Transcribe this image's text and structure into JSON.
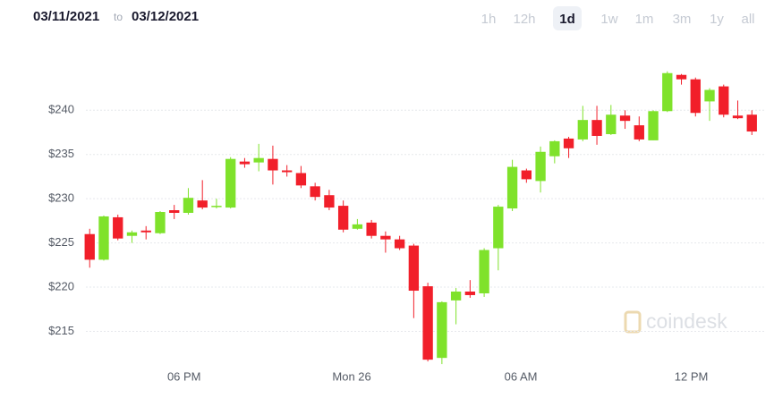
{
  "header": {
    "date_from": "03/11/2021",
    "separator": "to",
    "date_to": "03/12/2021",
    "ranges": [
      "1h",
      "12h",
      "1d",
      "1w",
      "1m",
      "3m",
      "1y",
      "all"
    ],
    "selected": "1d"
  },
  "watermark": "coindesk",
  "chart_data": {
    "type": "candlestick",
    "x": [
      0,
      1,
      2,
      3,
      4,
      5,
      6,
      7,
      8,
      9,
      10,
      11,
      12,
      13,
      14,
      15,
      16,
      17,
      18,
      19,
      20,
      21,
      22,
      23,
      24,
      25,
      26,
      27,
      28,
      29,
      30,
      31,
      32,
      33,
      34,
      35,
      36,
      37,
      38,
      39,
      40,
      41,
      42,
      43,
      44,
      45,
      46,
      47
    ],
    "open": [
      226.0,
      223.1,
      227.9,
      225.8,
      226.4,
      226.1,
      228.7,
      228.4,
      229.8,
      229.1,
      229.0,
      234.2,
      234.1,
      234.5,
      233.2,
      232.9,
      231.4,
      230.4,
      229.2,
      226.6,
      227.3,
      225.8,
      225.4,
      224.7,
      220.1,
      212.0,
      218.5,
      219.5,
      219.3,
      224.4,
      228.9,
      233.2,
      232.0,
      234.8,
      236.8,
      236.7,
      238.9,
      237.3,
      239.4,
      238.3,
      236.6,
      239.9,
      244.0,
      243.5,
      241.0,
      242.7,
      239.4,
      239.5
    ],
    "high": [
      226.6,
      228.1,
      228.2,
      226.4,
      226.9,
      228.6,
      229.3,
      231.2,
      232.1,
      230.0,
      234.7,
      234.6,
      236.2,
      236.0,
      233.8,
      233.7,
      231.8,
      231.0,
      229.8,
      227.7,
      227.6,
      226.3,
      225.8,
      224.9,
      220.5,
      218.4,
      219.9,
      220.8,
      224.4,
      229.3,
      234.4,
      233.4,
      235.9,
      236.6,
      237.0,
      240.5,
      240.5,
      240.6,
      240.0,
      239.3,
      240.0,
      244.4,
      244.1,
      243.7,
      242.5,
      242.9,
      241.1,
      240.0
    ],
    "low": [
      222.2,
      223.0,
      225.3,
      225.0,
      225.4,
      226.0,
      227.7,
      228.2,
      228.8,
      228.9,
      228.9,
      233.5,
      233.1,
      231.6,
      232.5,
      231.2,
      229.8,
      228.7,
      226.2,
      226.5,
      225.5,
      223.9,
      224.2,
      216.5,
      211.6,
      211.3,
      215.8,
      218.8,
      218.9,
      221.9,
      228.6,
      231.8,
      230.7,
      234.0,
      234.6,
      236.5,
      236.1,
      237.2,
      237.9,
      236.5,
      236.6,
      239.8,
      242.9,
      239.3,
      238.8,
      239.2,
      239.0,
      237.2
    ],
    "close": [
      223.1,
      228.0,
      225.5,
      226.2,
      226.2,
      228.5,
      228.4,
      230.1,
      229.0,
      229.2,
      234.5,
      233.9,
      234.6,
      233.2,
      233.0,
      231.5,
      230.2,
      229.0,
      226.5,
      227.1,
      225.8,
      225.4,
      224.4,
      219.6,
      211.8,
      218.3,
      219.5,
      219.1,
      224.2,
      229.1,
      233.6,
      232.2,
      235.3,
      236.5,
      235.7,
      238.9,
      237.1,
      239.5,
      238.8,
      236.7,
      239.9,
      244.2,
      243.5,
      239.7,
      242.3,
      239.5,
      239.1,
      237.6
    ],
    "up_color": "#7fe22b",
    "down_color": "#f11f2a",
    "xlim": [
      -3,
      48
    ],
    "xticks": [
      {
        "value": 6.7,
        "label": "06 PM"
      },
      {
        "value": 18.6,
        "label": "Mon 26"
      },
      {
        "value": 30.6,
        "label": "06 AM"
      },
      {
        "value": 42.7,
        "label": "12 PM"
      }
    ],
    "ylim": [
      210.5,
      246.4
    ],
    "yticks": [
      {
        "value": 215,
        "label": "$215"
      },
      {
        "value": 220,
        "label": "$220"
      },
      {
        "value": 225,
        "label": "$225"
      },
      {
        "value": 230,
        "label": "$230"
      },
      {
        "value": 235,
        "label": "$235"
      },
      {
        "value": 240,
        "label": "$240"
      }
    ],
    "grid": true
  }
}
